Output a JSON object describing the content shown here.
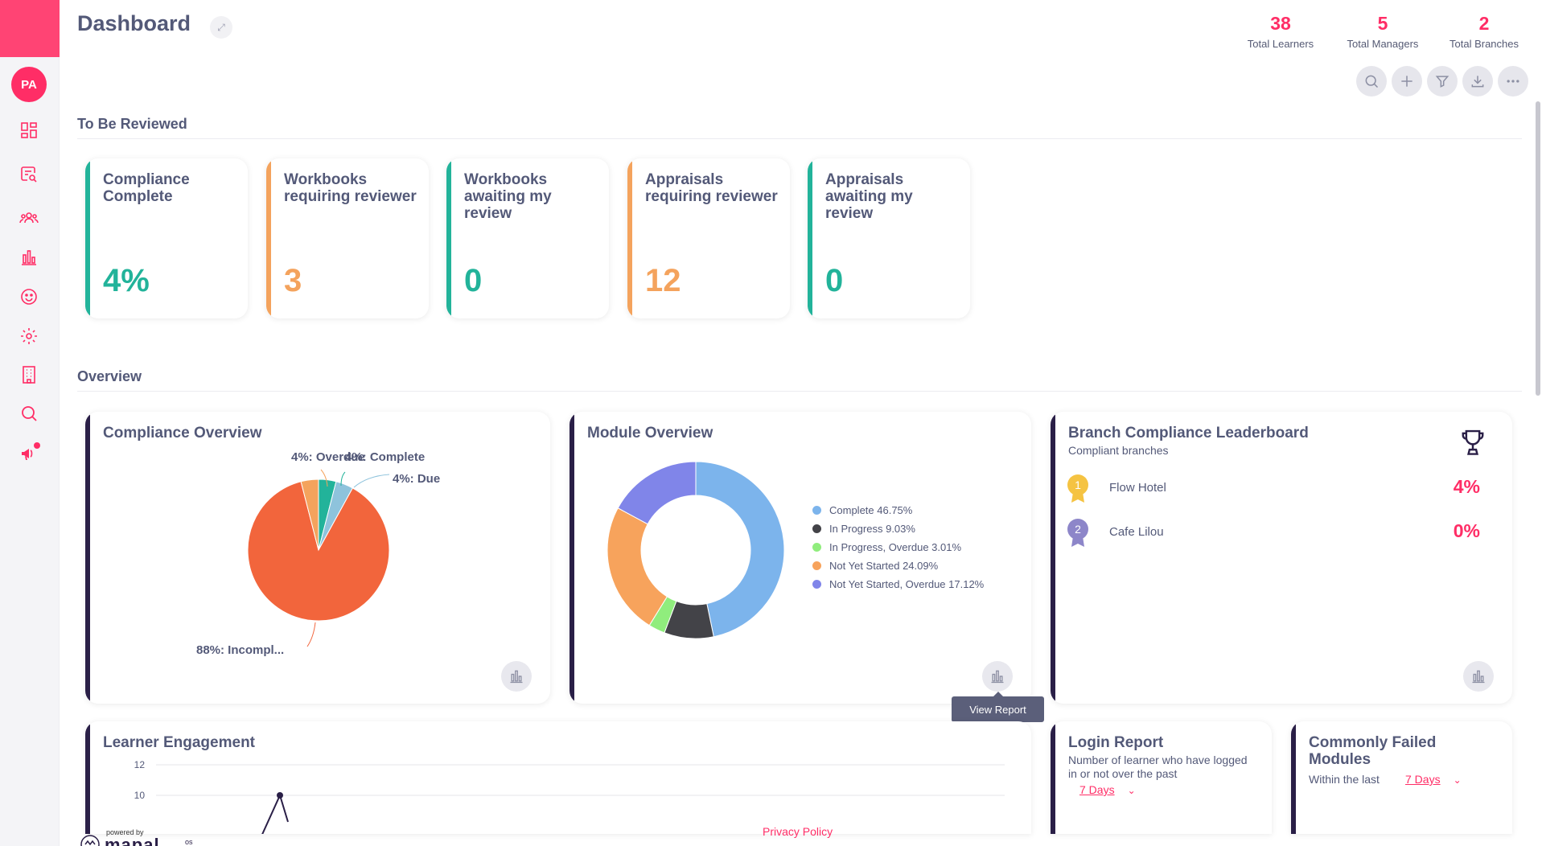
{
  "sidebar": {
    "avatar_initials": "PA",
    "items": [
      {
        "icon": "dashboard-icon"
      },
      {
        "icon": "search-list-icon"
      },
      {
        "icon": "users-icon"
      },
      {
        "icon": "bar-chart-icon"
      },
      {
        "icon": "smiley-icon"
      },
      {
        "icon": "gear-icon"
      },
      {
        "icon": "building-icon"
      },
      {
        "icon": "search-icon"
      },
      {
        "icon": "megaphone-icon"
      }
    ]
  },
  "header": {
    "title": "Dashboard",
    "stats": [
      {
        "value": "38",
        "label": "Total Learners"
      },
      {
        "value": "5",
        "label": "Total Managers"
      },
      {
        "value": "2",
        "label": "Total Branches"
      }
    ],
    "tools": [
      "search-icon",
      "plus-icon",
      "filter-icon",
      "download-icon",
      "more-icon"
    ]
  },
  "review": {
    "title": "To Be Reviewed",
    "cards": [
      {
        "title": "Compliance Complete",
        "value": "4%",
        "color": "#22b39a"
      },
      {
        "title": "Workbooks requiring reviewer",
        "value": "3",
        "color": "#f4a35d"
      },
      {
        "title": "Workbooks awaiting my review",
        "value": "0",
        "color": "#22b39a"
      },
      {
        "title": "Appraisals requiring reviewer",
        "value": "12",
        "color": "#f4a35d"
      },
      {
        "title": "Appraisals awaiting my review",
        "value": "0",
        "color": "#22b39a"
      }
    ]
  },
  "overview": {
    "title": "Overview",
    "compliance": {
      "title": "Compliance Overview",
      "labels": {
        "overdue": "4%: Overdue",
        "complete": "4%: Complete",
        "due": "4%: Due",
        "incomplete": "88%: Incompl..."
      }
    },
    "module": {
      "title": "Module Overview",
      "tooltip": "View Report"
    },
    "leaderboard": {
      "title": "Branch Compliance Leaderboard",
      "subtitle": "Compliant branches",
      "rows": [
        {
          "rank": "1",
          "name": "Flow Hotel",
          "value": "4%"
        },
        {
          "rank": "2",
          "name": "Cafe Lilou",
          "value": "0%"
        }
      ]
    },
    "engagement": {
      "title": "Learner Engagement",
      "y_ticks": [
        "12",
        "10"
      ]
    },
    "login": {
      "title": "Login Report",
      "subtitle": "Number of learner who have logged in or not over the past",
      "period": "7 Days"
    },
    "failed": {
      "title": "Commonly Failed Modules",
      "subtitle": "Within the last",
      "period": "7 Days"
    }
  },
  "footer": {
    "privacy": "Privacy Policy",
    "powered_by": "powered by",
    "logo_text": "mapal",
    "logo_suffix": "os"
  },
  "chart_data": [
    {
      "type": "pie",
      "title": "Compliance Overview",
      "categories": [
        "Complete",
        "Due",
        "Incomplete",
        "Overdue"
      ],
      "values": [
        4,
        4,
        88,
        4
      ],
      "colors": [
        "#22b39a",
        "#8ec3dc",
        "#f2653c",
        "#f4a35d"
      ]
    },
    {
      "type": "pie",
      "title": "Module Overview",
      "donut": true,
      "categories": [
        "Complete",
        "In Progress",
        "In Progress, Overdue",
        "Not Yet Started",
        "Not Yet Started, Overdue"
      ],
      "values": [
        46.75,
        9.03,
        3.01,
        24.09,
        17.12
      ],
      "legend_labels": [
        "Complete 46.75%",
        "In Progress 9.03%",
        "In Progress, Overdue 3.01%",
        "Not Yet Started 24.09%",
        "Not Yet Started, Overdue 17.12%"
      ],
      "colors": [
        "#7cb4ec",
        "#434348",
        "#90ed7d",
        "#f7a35c",
        "#8085e9"
      ]
    },
    {
      "type": "line",
      "title": "Learner Engagement",
      "y_ticks": [
        10,
        12
      ]
    }
  ]
}
